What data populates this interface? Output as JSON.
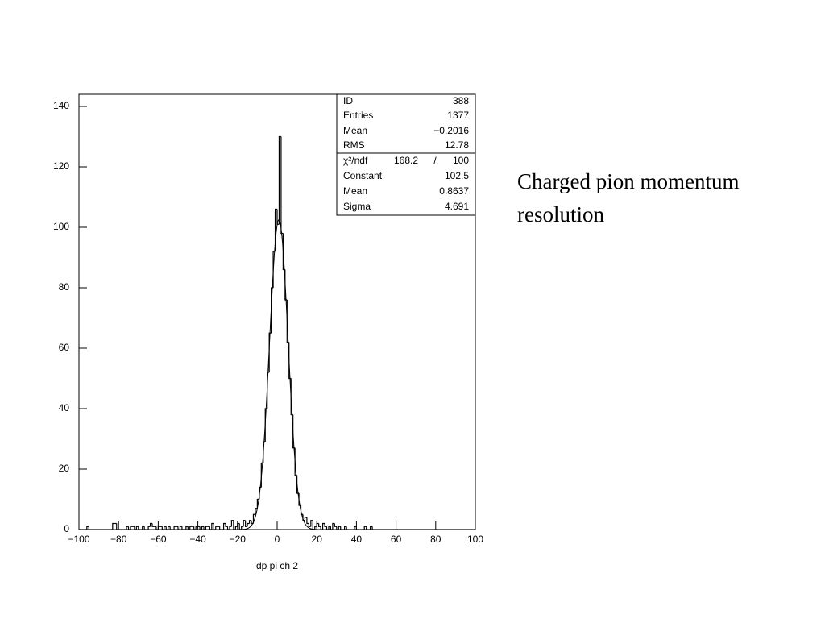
{
  "chart_data": {
    "type": "histogram",
    "xlabel": "dp pi ch 2",
    "side_text": [
      "Charged pion momentum",
      "resolution"
    ],
    "xlim": [
      -100,
      100
    ],
    "ylim": [
      0,
      144
    ],
    "xticks": [
      {
        "value": -100,
        "label": "−100"
      },
      {
        "value": -80,
        "label": "−80"
      },
      {
        "value": -60,
        "label": "−60"
      },
      {
        "value": -40,
        "label": "−40"
      },
      {
        "value": -20,
        "label": "−20"
      },
      0,
      20,
      40,
      60,
      80,
      100
    ],
    "yticks": [
      0,
      20,
      40,
      60,
      80,
      100,
      120,
      140
    ],
    "color": "#000000",
    "bins": [
      -100,
      -99,
      -98,
      -97,
      -96,
      -95,
      -94,
      -93,
      -92,
      -91,
      -90,
      -89,
      -88,
      -87,
      -86,
      -85,
      -84,
      -83,
      -82,
      -81,
      -80,
      -79,
      -78,
      -77,
      -76,
      -75,
      -74,
      -73,
      -72,
      -71,
      -70,
      -69,
      -68,
      -67,
      -66,
      -65,
      -64,
      -63,
      -62,
      -61,
      -60,
      -59,
      -58,
      -57,
      -56,
      -55,
      -54,
      -53,
      -52,
      -51,
      -50,
      -49,
      -48,
      -47,
      -46,
      -45,
      -44,
      -43,
      -42,
      -41,
      -40,
      -39,
      -38,
      -37,
      -36,
      -35,
      -34,
      -33,
      -32,
      -31,
      -30,
      -29,
      -28,
      -27,
      -26,
      -25,
      -24,
      -23,
      -22,
      -21,
      -20,
      -19,
      -18,
      -17,
      -16,
      -15,
      -14,
      -13,
      -12,
      -11,
      -10,
      -9,
      -8,
      -7,
      -6,
      -5,
      -4,
      -3,
      -2,
      -1,
      0,
      1,
      2,
      3,
      4,
      5,
      6,
      7,
      8,
      9,
      10,
      11,
      12,
      13,
      14,
      15,
      16,
      17,
      18,
      19,
      20,
      21,
      22,
      23,
      24,
      25,
      26,
      27,
      28,
      29,
      30,
      31,
      32,
      33,
      34,
      35,
      36,
      37,
      38,
      39,
      40,
      41,
      42,
      43,
      44,
      45,
      46,
      47,
      48,
      49,
      50,
      51,
      52,
      53,
      54,
      55,
      56,
      57,
      58,
      59,
      60,
      61,
      62,
      63,
      64,
      65,
      66,
      67,
      68,
      69,
      70,
      71,
      72,
      73,
      74,
      75,
      76,
      77,
      78,
      79,
      80,
      81,
      82,
      83,
      84,
      85,
      86,
      87,
      88,
      89,
      90,
      91,
      92,
      93,
      94,
      95,
      96,
      97,
      98,
      99,
      100
    ],
    "values": [
      0,
      0,
      0,
      0,
      1,
      0,
      0,
      0,
      0,
      0,
      0,
      0,
      0,
      0,
      0,
      0,
      0,
      2,
      2,
      0,
      0,
      0,
      0,
      0,
      1,
      0,
      1,
      1,
      0,
      1,
      0,
      0,
      1,
      0,
      0,
      1,
      2,
      1,
      1,
      0,
      1,
      1,
      0,
      1,
      0,
      1,
      0,
      0,
      1,
      1,
      0,
      1,
      0,
      0,
      1,
      0,
      1,
      1,
      0,
      1,
      1,
      0,
      1,
      0,
      1,
      1,
      0,
      2,
      0,
      1,
      1,
      0,
      0,
      2,
      1,
      0,
      1,
      3,
      0,
      1,
      2,
      0,
      1,
      3,
      1,
      2,
      3,
      2,
      5,
      7,
      10,
      14,
      22,
      29,
      40,
      52,
      65,
      80,
      92,
      106,
      101,
      130,
      98,
      86,
      76,
      62,
      50,
      38,
      27,
      18,
      12,
      8,
      5,
      3,
      4,
      2,
      1,
      3,
      0,
      1,
      2,
      1,
      0,
      2,
      1,
      0,
      1,
      0,
      2,
      1,
      0,
      1,
      0,
      0,
      1,
      0,
      0,
      0,
      0,
      1,
      0,
      0,
      0,
      0,
      1,
      0,
      0,
      1,
      0,
      0,
      0,
      0,
      0,
      0,
      0,
      0,
      0,
      0,
      0,
      0,
      0,
      0,
      0,
      0,
      0,
      0,
      0,
      0,
      0,
      0,
      0,
      0,
      0,
      0,
      0,
      0,
      0,
      0,
      0,
      0,
      0,
      0,
      0,
      0,
      0,
      0,
      0,
      0,
      0,
      0,
      0,
      0,
      0,
      0,
      0,
      0,
      0,
      0,
      0,
      0
    ],
    "stats": {
      "id": {
        "label": "ID",
        "value": 388
      },
      "entries": {
        "label": "Entries",
        "value": 1377
      },
      "mean": {
        "label": "Mean",
        "value": {
          "value": -0.2016,
          "label": "−0.2016"
        }
      },
      "rms": {
        "label": "RMS",
        "value": 12.78
      },
      "chi2": {
        "label": "χ²/ndf",
        "value": 168.2,
        "ndf": 100
      },
      "constant": {
        "label": "Constant",
        "value": 102.5
      },
      "fit_mean": {
        "label": "Mean",
        "value": 0.8637
      },
      "sigma": {
        "label": "Sigma",
        "value": 4.691
      }
    }
  }
}
